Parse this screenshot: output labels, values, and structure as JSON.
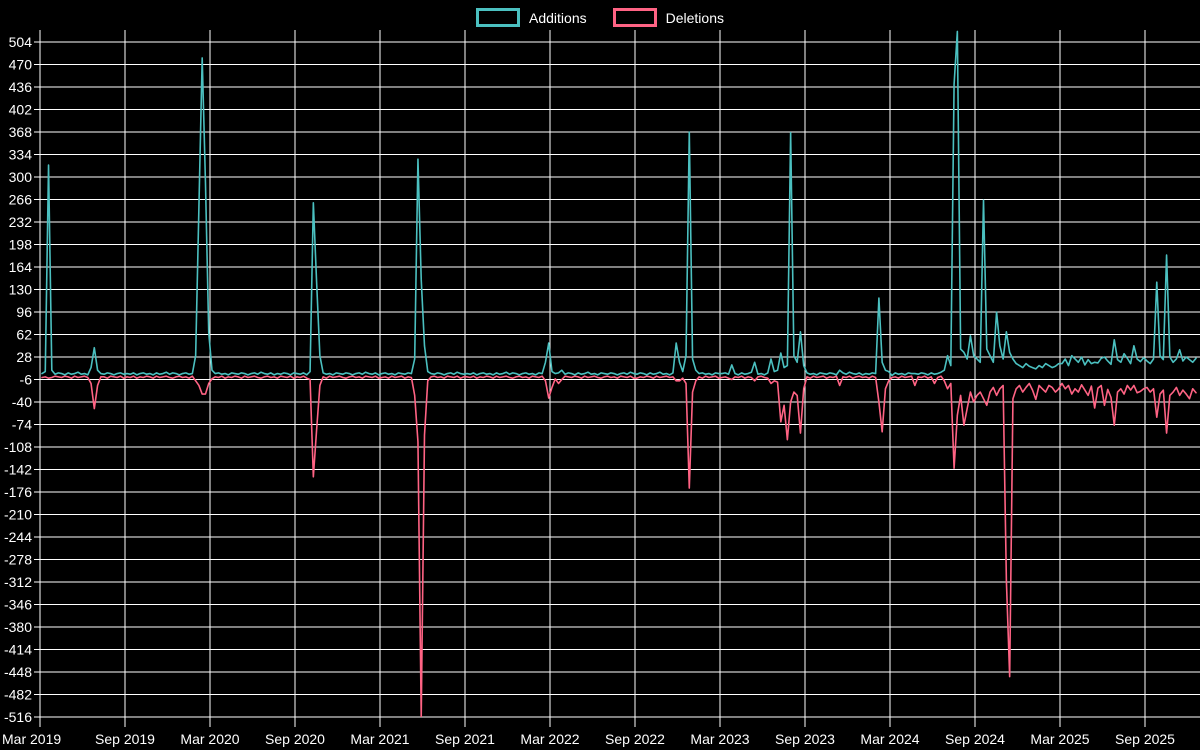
{
  "colors": {
    "background": "#000000",
    "grid": "#ffffff",
    "text": "#ffffff",
    "additions": "#4bc0c0",
    "deletions": "#ff6384"
  },
  "legend": {
    "additions_label": "Additions",
    "deletions_label": "Deletions"
  },
  "chart_data": {
    "type": "line",
    "title": "",
    "legend_position": "top",
    "grid": true,
    "ylim": [
      -516,
      504
    ],
    "ytick_step": 34,
    "ytick_labels": [
      "504",
      "470",
      "436",
      "402",
      "368",
      "334",
      "300",
      "266",
      "232",
      "198",
      "164",
      "130",
      "96",
      "62",
      "28",
      "-6",
      "-40",
      "-74",
      "-108",
      "-142",
      "-176",
      "-210",
      "-244",
      "-278",
      "-312",
      "-346",
      "-380",
      "-414",
      "-448",
      "-482",
      "-516"
    ],
    "xtick_labels": [
      "Mar 2019",
      "Sep 2019",
      "Mar 2020",
      "Sep 2020",
      "Mar 2021",
      "Sep 2021",
      "Mar 2022",
      "Sep 2022",
      "Mar 2023",
      "Sep 2023",
      "Mar 2024",
      "Sep 2024",
      "Mar 2025",
      "Sep 2025"
    ],
    "x_resolution": "weekly",
    "series": [
      {
        "name": "Additions",
        "color": "#4bc0c0",
        "values": [
          3,
          6,
          318,
          8,
          2,
          4,
          3,
          1,
          4,
          2,
          3,
          5,
          2,
          3,
          1,
          12,
          42,
          8,
          3,
          2,
          4,
          3,
          1,
          3,
          4,
          2,
          3,
          2,
          4,
          1,
          3,
          4,
          2,
          3,
          1,
          4,
          2,
          3,
          5,
          2,
          4,
          3,
          1,
          3,
          4,
          2,
          3,
          30,
          255,
          480,
          292,
          65,
          8,
          3,
          4,
          2,
          3,
          1,
          4,
          3,
          2,
          4,
          3,
          1,
          3,
          4,
          2,
          5,
          3,
          2,
          4,
          1,
          3,
          2,
          4,
          3,
          1,
          4,
          3,
          2,
          4,
          1,
          6,
          261,
          141,
          30,
          4,
          2,
          3,
          1,
          4,
          3,
          2,
          4,
          3,
          1,
          3,
          4,
          2,
          5,
          3,
          2,
          4,
          1,
          3,
          4,
          2,
          3,
          1,
          4,
          3,
          2,
          4,
          3,
          25,
          327,
          145,
          45,
          6,
          3,
          2,
          4,
          3,
          1,
          3,
          4,
          2,
          5,
          3,
          2,
          3,
          2,
          4,
          1,
          3,
          4,
          2,
          3,
          1,
          4,
          2,
          3,
          5,
          2,
          4,
          3,
          1,
          3,
          4,
          2,
          3,
          1,
          4,
          3,
          20,
          49,
          6,
          3,
          4,
          8,
          2,
          4,
          3,
          1,
          4,
          2,
          3,
          5,
          2,
          3,
          1,
          4,
          3,
          2,
          4,
          3,
          1,
          3,
          4,
          2,
          5,
          3,
          2,
          4,
          3,
          1,
          4,
          2,
          3,
          5,
          2,
          3,
          1,
          4,
          49,
          20,
          6,
          30,
          368,
          25,
          8,
          3,
          4,
          2,
          3,
          1,
          4,
          3,
          3,
          4,
          2,
          16,
          3,
          1,
          4,
          2,
          3,
          5,
          20,
          2,
          3,
          1,
          4,
          25,
          6,
          8,
          34,
          12,
          15,
          367,
          30,
          20,
          66,
          15,
          4,
          2,
          3,
          1,
          4,
          3,
          2,
          4,
          3,
          1,
          8,
          4,
          2,
          5,
          3,
          2,
          4,
          1,
          3,
          2,
          4,
          3,
          117,
          20,
          8,
          6,
          0,
          4,
          2,
          3,
          1,
          4,
          3,
          3,
          2,
          4,
          3,
          1,
          4,
          2,
          3,
          5,
          8,
          30,
          15,
          440,
          520,
          40,
          35,
          25,
          60,
          30,
          25,
          20,
          265,
          40,
          30,
          20,
          96,
          45,
          25,
          66,
          35,
          25,
          18,
          15,
          12,
          18,
          14,
          12,
          10,
          15,
          12,
          18,
          15,
          12,
          14,
          18,
          18,
          25,
          15,
          30,
          25,
          20,
          28,
          16,
          24,
          18,
          20,
          19,
          26,
          28,
          22,
          17,
          54,
          24,
          20,
          33,
          26,
          18,
          45,
          25,
          21,
          27,
          22,
          18,
          25,
          141,
          30,
          24,
          182,
          28,
          20,
          25,
          39,
          22,
          28,
          24,
          20,
          26
        ]
      },
      {
        "name": "Deletions",
        "color": "#ff6384",
        "values": [
          -3,
          -2,
          -4,
          -3,
          -1,
          -2,
          -3,
          -1,
          -2,
          -4,
          -1,
          -3,
          -2,
          -1,
          -3,
          -12,
          -50,
          -15,
          -2,
          -2,
          -4,
          -1,
          -2,
          -3,
          -1,
          -4,
          -2,
          -3,
          -1,
          -4,
          -2,
          -3,
          -1,
          -2,
          -4,
          -1,
          -3,
          -2,
          -1,
          -3,
          -4,
          -2,
          -1,
          -3,
          -2,
          -4,
          -1,
          -8,
          -15,
          -28,
          -28,
          -12,
          -5,
          -2,
          -3,
          -1,
          -4,
          -2,
          -3,
          -1,
          -2,
          -4,
          -1,
          -3,
          -2,
          -1,
          -3,
          -4,
          -2,
          -1,
          -3,
          -2,
          -4,
          -1,
          -2,
          -3,
          -1,
          -4,
          -2,
          -3,
          -1,
          -4,
          -6,
          -153,
          -82,
          -15,
          -2,
          -4,
          -1,
          -3,
          -2,
          -1,
          -3,
          -4,
          -2,
          -1,
          -3,
          -2,
          -4,
          -1,
          -2,
          -3,
          -1,
          -4,
          -3,
          -2,
          -4,
          -1,
          -3,
          -2,
          -1,
          -4,
          -2,
          -3,
          -30,
          -100,
          -516,
          -90,
          -8,
          -2,
          -1,
          -3,
          -2,
          -4,
          -1,
          -2,
          -3,
          -1,
          -4,
          -2,
          -2,
          -3,
          -1,
          -4,
          -2,
          -3,
          -1,
          -2,
          -4,
          -1,
          -3,
          -2,
          -1,
          -3,
          -4,
          -2,
          -1,
          -3,
          -2,
          -4,
          -1,
          -2,
          -3,
          -1,
          -8,
          -34,
          -18,
          -5,
          -12,
          -6,
          -1,
          -2,
          -3,
          -1,
          -2,
          -4,
          -1,
          -3,
          -2,
          -1,
          -3,
          -4,
          -2,
          -1,
          -3,
          -2,
          -4,
          -1,
          -2,
          -3,
          -1,
          -4,
          -4,
          -2,
          -3,
          -1,
          -2,
          -4,
          -1,
          -3,
          -2,
          -1,
          -3,
          -2,
          -8,
          -8,
          -4,
          -12,
          -170,
          -25,
          -8,
          -2,
          -4,
          -1,
          -3,
          -2,
          -1,
          -4,
          -3,
          -2,
          -4,
          -6,
          -2,
          -3,
          -1,
          -4,
          -2,
          -3,
          -8,
          -2,
          -1,
          -3,
          -4,
          -12,
          -8,
          -10,
          -70,
          -45,
          -97,
          -40,
          -25,
          -30,
          -87,
          -20,
          -2,
          -4,
          -1,
          -3,
          -2,
          -1,
          -4,
          -2,
          -3,
          -1,
          -15,
          -2,
          -3,
          -1,
          -4,
          -2,
          -1,
          -3,
          -2,
          -4,
          -1,
          -3,
          -40,
          -85,
          -20,
          -8,
          -3,
          -2,
          -4,
          -1,
          -3,
          -2,
          -1,
          -15,
          -2,
          -3,
          -1,
          -4,
          -2,
          -12,
          -3,
          -1,
          -8,
          -20,
          -12,
          -140,
          -60,
          -30,
          -75,
          -50,
          -25,
          -40,
          -30,
          -25,
          -35,
          -45,
          -25,
          -18,
          -30,
          -20,
          -15,
          -310,
          -455,
          -35,
          -20,
          -15,
          -25,
          -18,
          -12,
          -22,
          -36,
          -15,
          -20,
          -25,
          -15,
          -18,
          -25,
          -20,
          -12,
          -20,
          -15,
          -28,
          -20,
          -25,
          -14,
          -22,
          -30,
          -16,
          -49,
          -19,
          -15,
          -45,
          -21,
          -33,
          -75,
          -25,
          -20,
          -28,
          -15,
          -22,
          -15,
          -26,
          -24,
          -20,
          -18,
          -25,
          -20,
          -63,
          -28,
          -22,
          -87,
          -30,
          -25,
          -18,
          -30,
          -22,
          -28,
          -35,
          -20,
          -26
        ]
      }
    ]
  }
}
